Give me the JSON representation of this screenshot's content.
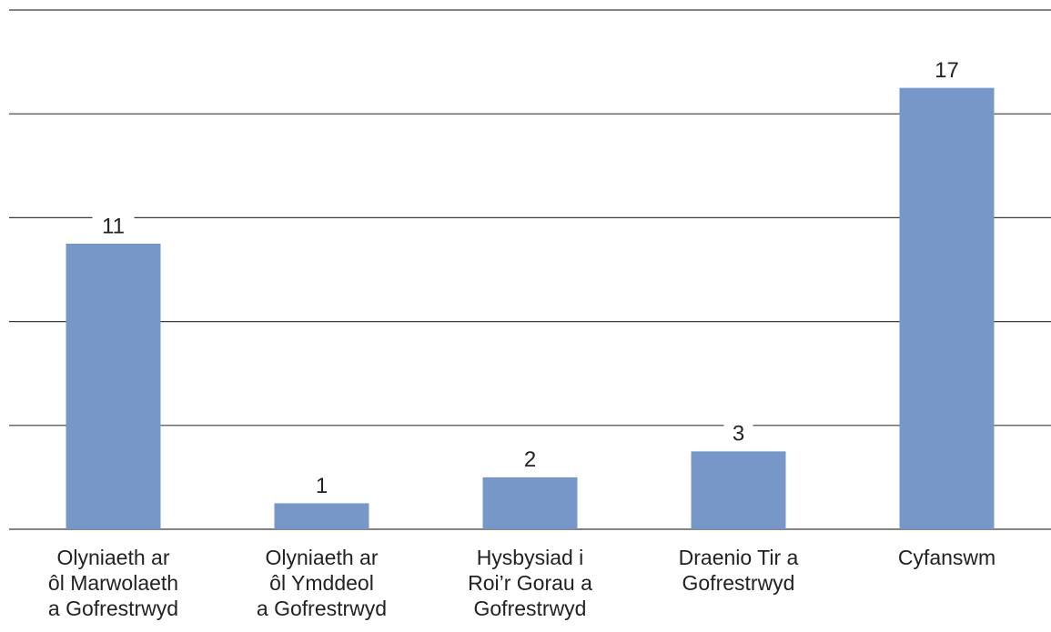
{
  "chart_data": {
    "type": "bar",
    "categories": [
      [
        "Olyniaeth ar",
        "ôl Marwolaeth",
        "a Gofrestrwyd"
      ],
      [
        "Olyniaeth ar",
        "ôl Ymddeol",
        "a Gofrestrwyd"
      ],
      [
        "Hysbysiad i",
        "Roi’r Gorau a",
        "Gofrestrwyd"
      ],
      [
        "Draenio Tir a",
        "Gofrestrwyd"
      ],
      [
        "Cyfanswm"
      ]
    ],
    "values": [
      11,
      1,
      2,
      3,
      17
    ],
    "data_labels": [
      "11",
      "1",
      "2",
      "3",
      "17"
    ],
    "ylim": [
      0,
      20
    ],
    "gridlines": [
      0,
      4,
      8,
      12,
      16,
      20
    ],
    "grid": true,
    "colors": {
      "bar": "#7697c7",
      "grid": "#3a3a3a",
      "text": "#222222"
    },
    "title": "",
    "xlabel": "",
    "ylabel": ""
  }
}
